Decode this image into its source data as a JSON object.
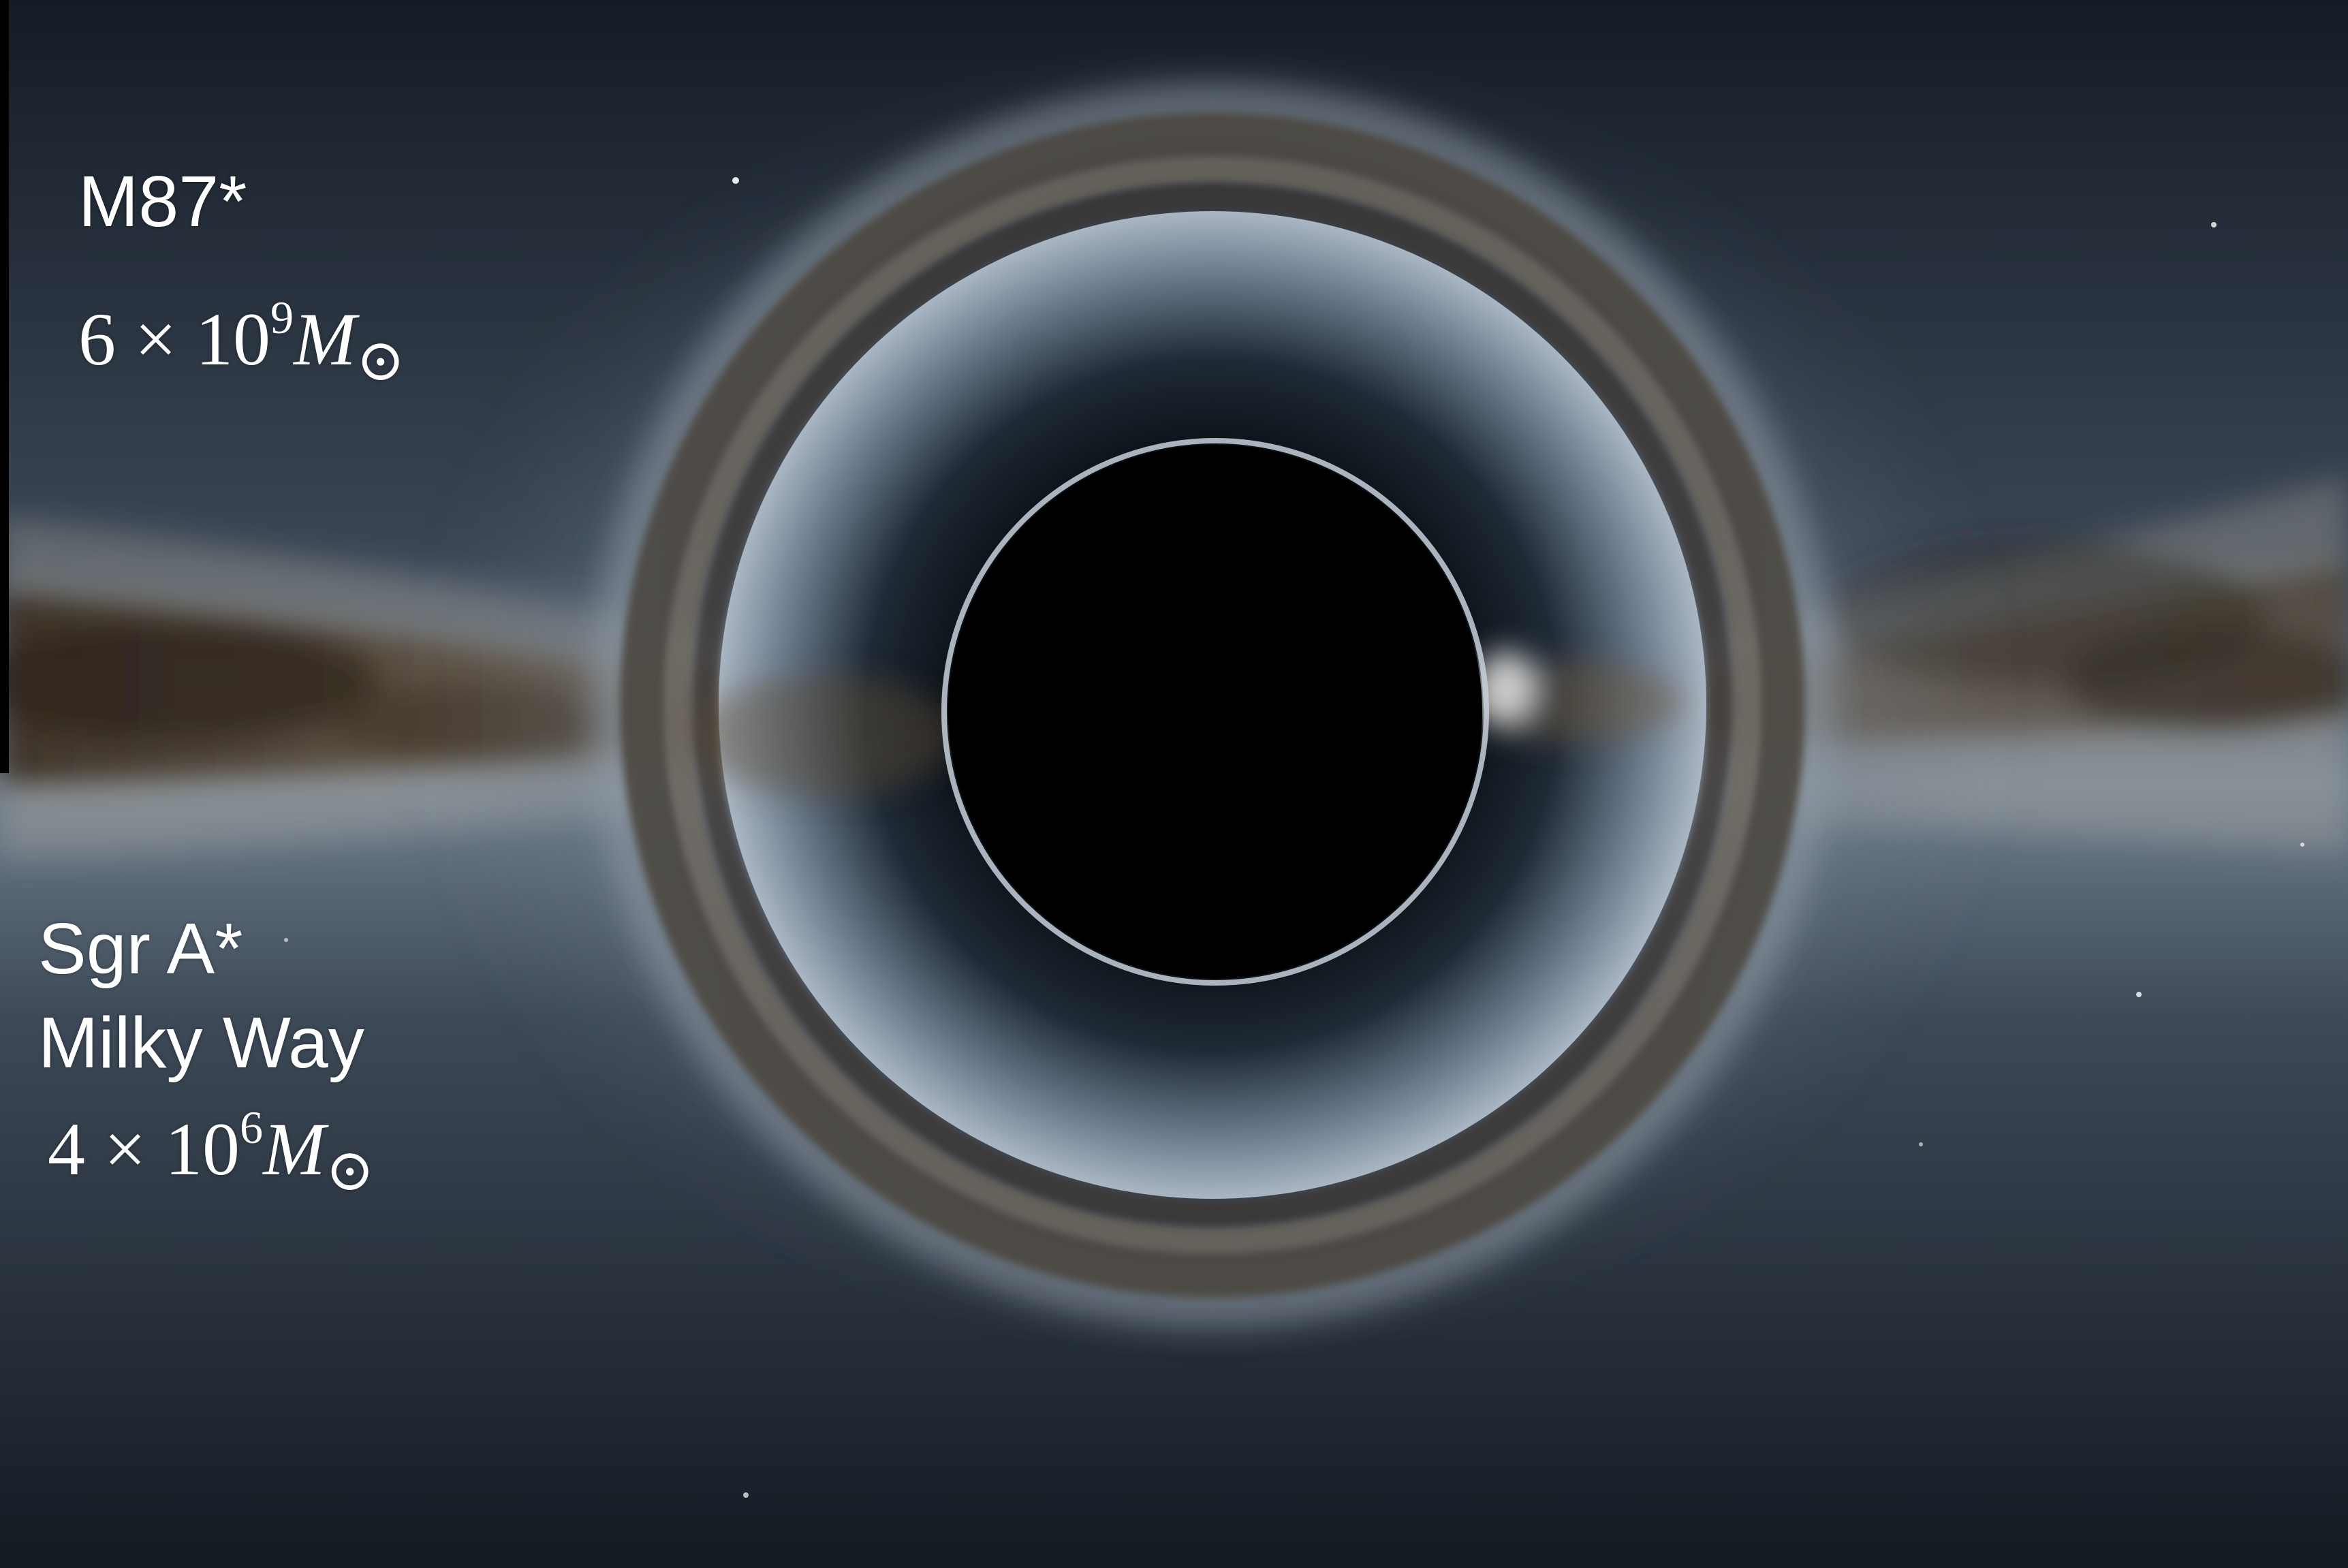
{
  "labels": {
    "m87": {
      "name": "M87*",
      "mass_coeff": "6",
      "times": "×",
      "mass_base": "10",
      "mass_exp": "9",
      "mass_symbol": "M",
      "mass_sub": "⊙"
    },
    "sgr": {
      "name": "Sgr A*",
      "host": "Milky Way",
      "mass_coeff": "4",
      "times": "×",
      "mass_base": "10",
      "mass_exp": "6",
      "mass_symbol": "M",
      "mass_sub": "⊙"
    }
  },
  "colors": {
    "sky_dark": "#1b2430",
    "halo": "#8797a8",
    "band_dust": "#5a4a38",
    "shadow": "#000000",
    "text": "#ffffff"
  }
}
